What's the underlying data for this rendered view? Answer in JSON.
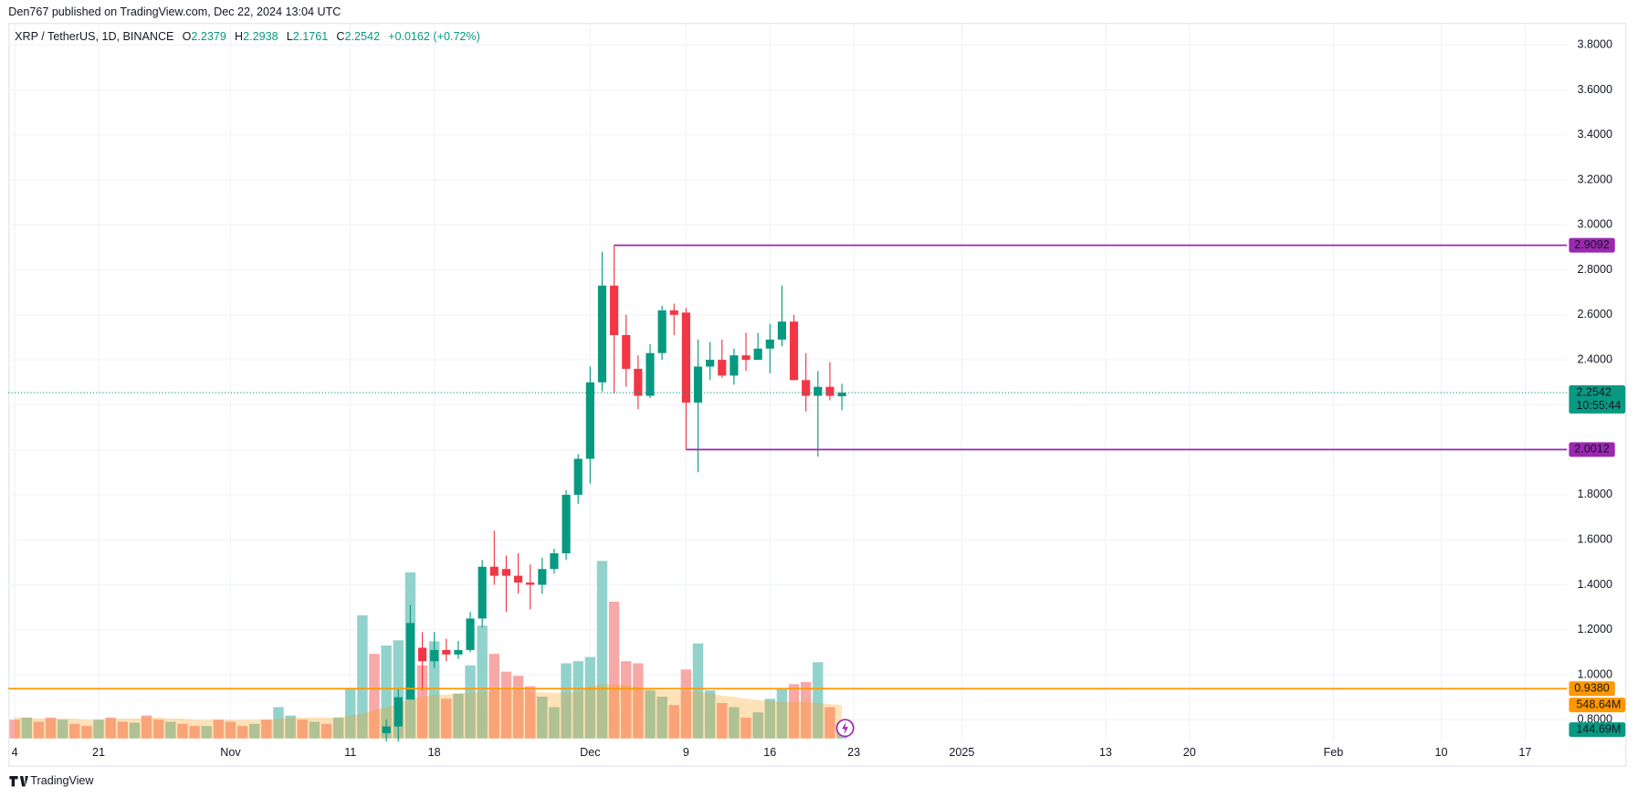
{
  "header": {
    "published": "Den767 published on TradingView.com, Dec 22, 2024 13:04 UTC"
  },
  "chart_data": {
    "type": "candlestick",
    "symbol": "XRP / TetherUS, 1D, BINANCE",
    "ohlc_keys": [
      "O",
      "H",
      "L",
      "C"
    ],
    "ohlc_values": [
      2.2379,
      2.2938,
      2.1761,
      2.2542
    ],
    "change_label": "+0.0162 (+0.72%)",
    "categories": [
      "4",
      null,
      null,
      null,
      null,
      null,
      null,
      "21",
      null,
      null,
      null,
      null,
      null,
      null,
      null,
      null,
      null,
      null,
      "Nov",
      null,
      null,
      null,
      null,
      null,
      null,
      null,
      null,
      null,
      "11",
      null,
      null,
      null,
      null,
      null,
      null,
      "18",
      null,
      null,
      null,
      null,
      null,
      null,
      null,
      null,
      null,
      null,
      null,
      null,
      "Dec",
      null,
      null,
      null,
      null,
      null,
      null,
      null,
      "9",
      null,
      null,
      null,
      null,
      null,
      null,
      "16",
      null,
      null,
      null,
      null,
      null,
      null,
      "23",
      null,
      null,
      null,
      null,
      null,
      null,
      null,
      null,
      "2025",
      null,
      null,
      null,
      null,
      null,
      null,
      null,
      null,
      null,
      null,
      null,
      "13",
      null,
      null,
      null,
      null,
      null,
      null,
      "20",
      null,
      null,
      null,
      null,
      null,
      null,
      null,
      null,
      null,
      null,
      null,
      "Feb",
      null,
      null,
      null,
      null,
      null,
      null,
      null,
      null,
      "10",
      null,
      null,
      null,
      null,
      null,
      null,
      "17",
      null,
      null,
      null
    ],
    "open": [
      null,
      null,
      null,
      null,
      null,
      null,
      null,
      null,
      null,
      null,
      null,
      null,
      null,
      null,
      null,
      null,
      null,
      null,
      null,
      null,
      null,
      null,
      null,
      null,
      null,
      null,
      null,
      null,
      null,
      null,
      null,
      0.74,
      0.77,
      0.89,
      1.12,
      1.06,
      1.11,
      1.09,
      1.11,
      1.25,
      1.48,
      1.47,
      1.44,
      1.41,
      1.4,
      1.47,
      1.54,
      1.8,
      1.96,
      2.3,
      2.73,
      2.51,
      2.36,
      2.24,
      2.43,
      2.62,
      2.61,
      2.21,
      2.37,
      2.4,
      2.33,
      2.42,
      2.4,
      2.45,
      2.49,
      2.57,
      2.31,
      2.24,
      2.28,
      2.2379,
      null,
      null,
      null,
      null,
      null,
      null,
      null,
      null,
      null,
      null,
      null,
      null,
      null,
      null,
      null,
      null,
      null,
      null,
      null,
      null,
      null,
      null,
      null,
      null,
      null,
      null,
      null,
      null,
      null,
      null,
      null,
      null,
      null,
      null,
      null,
      null,
      null,
      null,
      null,
      null,
      null,
      null,
      null,
      null,
      null,
      null,
      null,
      null,
      null,
      null,
      null,
      null,
      null,
      null,
      null,
      null,
      null,
      null,
      null,
      null
    ],
    "high": [
      null,
      null,
      null,
      null,
      null,
      null,
      null,
      null,
      null,
      null,
      null,
      null,
      null,
      null,
      null,
      null,
      null,
      null,
      null,
      null,
      null,
      null,
      null,
      null,
      null,
      null,
      null,
      null,
      null,
      null,
      null,
      0.8,
      0.94,
      1.31,
      1.19,
      1.19,
      1.16,
      1.15,
      1.28,
      1.51,
      1.64,
      1.53,
      1.54,
      1.49,
      1.52,
      1.56,
      1.82,
      1.98,
      2.37,
      2.88,
      2.9092,
      2.6,
      2.42,
      2.47,
      2.64,
      2.65,
      2.63,
      2.49,
      2.48,
      2.49,
      2.45,
      2.52,
      2.52,
      2.56,
      2.73,
      2.6,
      2.43,
      2.35,
      2.39,
      2.2938,
      null,
      null,
      null,
      null,
      null,
      null,
      null,
      null,
      null,
      null,
      null,
      null,
      null,
      null,
      null,
      null,
      null,
      null,
      null,
      null,
      null,
      null,
      null,
      null,
      null,
      null,
      null,
      null,
      null,
      null,
      null,
      null,
      null,
      null,
      null,
      null,
      null,
      null,
      null,
      null,
      null,
      null,
      null,
      null,
      null,
      null,
      null,
      null,
      null,
      null,
      null,
      null,
      null,
      null,
      null,
      null,
      null,
      null,
      null,
      null
    ],
    "low": [
      null,
      null,
      null,
      null,
      null,
      null,
      null,
      null,
      null,
      null,
      null,
      null,
      null,
      null,
      null,
      null,
      null,
      null,
      null,
      null,
      null,
      null,
      null,
      null,
      null,
      null,
      null,
      null,
      null,
      null,
      null,
      0.7,
      0.7,
      0.89,
      0.93,
      1.03,
      1.06,
      1.07,
      1.1,
      1.21,
      1.4,
      1.28,
      1.36,
      1.29,
      1.36,
      1.45,
      1.51,
      1.76,
      1.85,
      2.26,
      2.25,
      2.28,
      2.18,
      2.23,
      2.4,
      2.51,
      2.0012,
      1.9,
      2.31,
      2.32,
      2.29,
      2.35,
      2.4,
      2.34,
      2.46,
      2.31,
      2.17,
      1.97,
      2.22,
      2.1761,
      null,
      null,
      null,
      null,
      null,
      null,
      null,
      null,
      null,
      null,
      null,
      null,
      null,
      null,
      null,
      null,
      null,
      null,
      null,
      null,
      null,
      null,
      null,
      null,
      null,
      null,
      null,
      null,
      null,
      null,
      null,
      null,
      null,
      null,
      null,
      null,
      null,
      null,
      null,
      null,
      null,
      null,
      null,
      null,
      null,
      null,
      null,
      null,
      null,
      null,
      null,
      null,
      null,
      null,
      null,
      null,
      null,
      null,
      null,
      null
    ],
    "close": [
      null,
      null,
      null,
      null,
      null,
      null,
      null,
      null,
      null,
      null,
      null,
      null,
      null,
      null,
      null,
      null,
      null,
      null,
      null,
      null,
      null,
      null,
      null,
      null,
      null,
      null,
      null,
      null,
      null,
      null,
      null,
      0.77,
      0.9,
      1.23,
      1.06,
      1.11,
      1.09,
      1.11,
      1.25,
      1.48,
      1.44,
      1.44,
      1.41,
      1.4,
      1.47,
      1.54,
      1.8,
      1.96,
      2.3,
      2.73,
      2.51,
      2.36,
      2.24,
      2.43,
      2.62,
      2.6,
      2.21,
      2.37,
      2.4,
      2.33,
      2.42,
      2.4,
      2.45,
      2.49,
      2.57,
      2.31,
      2.24,
      2.28,
      2.24,
      2.2542,
      null,
      null,
      null,
      null,
      null,
      null,
      null,
      null,
      null,
      null,
      null,
      null,
      null,
      null,
      null,
      null,
      null,
      null,
      null,
      null,
      null,
      null,
      null,
      null,
      null,
      null,
      null,
      null,
      null,
      null,
      null,
      null,
      null,
      null,
      null,
      null,
      null,
      null,
      null,
      null,
      null,
      null,
      null,
      null,
      null,
      null,
      null,
      null,
      null,
      null,
      null,
      null,
      null,
      null,
      null,
      null,
      null,
      null,
      null,
      null
    ],
    "up_color": "#089981",
    "down_color": "#f23645",
    "volume": [
      308,
      342,
      274,
      342,
      308,
      239,
      205,
      308,
      342,
      274,
      257,
      376,
      308,
      274,
      239,
      205,
      205,
      308,
      274,
      205,
      239,
      308,
      513,
      376,
      308,
      274,
      239,
      342,
      821,
      2018,
      1385,
      1522,
      1607,
      2719,
      1197,
      1590,
      650,
      735,
      1197,
      1847,
      1385,
      1094,
      1026,
      855,
      684,
      513,
      1231,
      1265,
      1334,
      2907,
      2240,
      1265,
      1231,
      787,
      684,
      547,
      1129,
      1556,
      787,
      581,
      513,
      342,
      428,
      650,
      821,
      889,
      923,
      1248,
      513,
      144.69,
      null,
      null,
      null,
      null,
      null,
      null,
      null,
      null,
      null,
      null,
      null,
      null,
      null,
      null,
      null,
      null,
      null,
      null,
      null,
      null,
      null,
      null,
      null,
      null,
      null,
      null,
      null,
      null,
      null,
      null,
      null,
      null,
      null,
      null,
      null,
      null,
      null,
      null,
      null,
      null,
      null,
      null,
      null,
      null,
      null,
      null,
      null,
      null,
      null,
      null,
      null,
      null,
      null,
      null,
      null,
      null,
      null,
      null,
      null,
      null
    ],
    "volume_colors": [
      "#f7a9a7",
      "#92d2cc",
      "#f7a9a7",
      "#f7a9a7",
      "#92d2cc",
      "#f7a9a7",
      "#f7a9a7",
      "#92d2cc",
      "#f7a9a7",
      "#f7a9a7",
      "#92d2cc",
      "#f7a9a7",
      "#f7a9a7",
      "#92d2cc",
      "#f7a9a7",
      "#f7a9a7",
      "#92d2cc",
      "#f7a9a7",
      "#f7a9a7",
      "#f7a9a7",
      "#92d2cc",
      "#f7a9a7",
      "#92d2cc",
      "#92d2cc",
      "#f7a9a7",
      "#92d2cc",
      "#f7a9a7",
      "#92d2cc",
      "#92d2cc",
      "#92d2cc",
      "#f7a9a7",
      "#92d2cc",
      "#92d2cc",
      "#92d2cc",
      "#f7a9a7",
      "#92d2cc",
      "#f7a9a7",
      "#92d2cc",
      "#92d2cc",
      "#92d2cc",
      "#f7a9a7",
      "#f7a9a7",
      "#f7a9a7",
      "#f7a9a7",
      "#92d2cc",
      "#92d2cc",
      "#92d2cc",
      "#92d2cc",
      "#92d2cc",
      "#92d2cc",
      "#f7a9a7",
      "#f7a9a7",
      "#f7a9a7",
      "#92d2cc",
      "#92d2cc",
      "#f7a9a7",
      "#f7a9a7",
      "#92d2cc",
      "#92d2cc",
      "#f7a9a7",
      "#92d2cc",
      "#f7a9a7",
      "#92d2cc",
      "#92d2cc",
      "#92d2cc",
      "#f7a9a7",
      "#f7a9a7",
      "#92d2cc",
      "#f7a9a7",
      "#92d2cc",
      null,
      null,
      null,
      null,
      null,
      null,
      null,
      null,
      null,
      null,
      null,
      null,
      null,
      null,
      null,
      null,
      null,
      null,
      null,
      null,
      null,
      null,
      null,
      null,
      null,
      null,
      null,
      null,
      null,
      null,
      null,
      null,
      null,
      null,
      null,
      null,
      null,
      null,
      null,
      null,
      null,
      null,
      null,
      null,
      null,
      null,
      null,
      null,
      null,
      null,
      null,
      null,
      null,
      null,
      null,
      null,
      null,
      null,
      null,
      null
    ],
    "volume_label": "144.69M",
    "volume_ma": [
      342,
      342,
      325,
      325,
      325,
      325,
      308,
      308,
      325,
      325,
      325,
      342,
      342,
      325,
      325,
      308,
      308,
      308,
      308,
      308,
      308,
      308,
      325,
      342,
      342,
      342,
      342,
      342,
      376,
      410,
      462,
      513,
      564,
      650,
      684,
      718,
      718,
      735,
      752,
      770,
      787,
      787,
      787,
      770,
      752,
      752,
      752,
      770,
      855,
      889,
      889,
      872,
      838,
      804,
      787,
      787,
      787,
      770,
      735,
      701,
      684,
      650,
      633,
      616,
      599,
      599,
      599,
      581,
      564,
      548.64,
      null,
      null,
      null,
      null,
      null,
      null,
      null,
      null,
      null,
      null,
      null,
      null,
      null,
      null,
      null,
      null,
      null,
      null,
      null,
      null,
      null,
      null,
      null,
      null,
      null,
      null,
      null,
      null,
      null,
      null,
      null,
      null,
      null,
      null,
      null,
      null,
      null,
      null,
      null,
      null,
      null,
      null,
      null,
      null,
      null,
      null,
      null,
      null,
      null,
      null,
      null,
      null,
      null,
      null,
      null,
      null,
      null,
      null,
      null,
      null
    ],
    "volume_ma_color": "#ff9800",
    "volume_ma_label": "548.64M",
    "ylim": [
      0.7028,
      3.8975
    ],
    "yticks": [
      {
        "value": 0.8,
        "label": "0.8000"
      },
      {
        "value": 1.0,
        "label": "1.0000"
      },
      {
        "value": 1.2,
        "label": "1.2000"
      },
      {
        "value": 1.4,
        "label": "1.4000"
      },
      {
        "value": 1.6,
        "label": "1.6000"
      },
      {
        "value": 1.8,
        "label": "1.8000"
      },
      {
        "value": 2.0,
        "label": "2.0000"
      },
      {
        "value": 2.2,
        "label": "2.2000"
      },
      {
        "value": 2.4,
        "label": "2.4000"
      },
      {
        "value": 2.6,
        "label": "2.6000"
      },
      {
        "value": 2.8,
        "label": "2.8000"
      },
      {
        "value": 3.0,
        "label": "3.0000"
      },
      {
        "value": 3.2,
        "label": "3.2000"
      },
      {
        "value": 3.4,
        "label": "3.4000"
      },
      {
        "value": 3.6,
        "label": "3.6000"
      },
      {
        "value": 3.8,
        "label": "3.8000"
      }
    ],
    "grid": true,
    "horizontal_lines": [
      {
        "value": 2.9092,
        "color": "#9c27b0"
      },
      {
        "value": 2.0012,
        "color": "#9c27b0"
      },
      {
        "value": 0.938,
        "label": "0.9380",
        "color": "#ff9800"
      }
    ],
    "countdown": "10:55:44"
  },
  "footer": {
    "brand": "TradingView"
  }
}
